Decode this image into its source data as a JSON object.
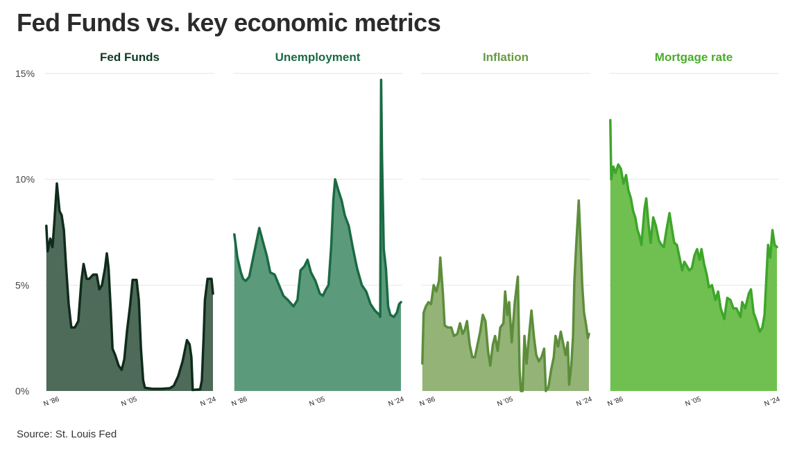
{
  "title": "Fed Funds vs. key economic metrics",
  "source": "Source: St. Louis Fed",
  "chart_data": {
    "type": "area",
    "layout": "small-multiples",
    "grid": "horizontal",
    "ylim": [
      0,
      15
    ],
    "y_ticks": [
      "0%",
      "5%",
      "10%",
      "15%"
    ],
    "y_tick_values": [
      0,
      5,
      10,
      15
    ],
    "x_ticks": [
      "N '86",
      "N '05",
      "N '24"
    ],
    "xlim": [
      1986.83,
      2024.83
    ],
    "x_tick_values": [
      1986.83,
      2005.83,
      2024.83
    ],
    "series": [
      {
        "name": "Fed Funds",
        "fill": "#4d6b58",
        "line": "#0f2b1b",
        "title_color": "#0f3b23",
        "points": [
          [
            1986.8,
            7.8
          ],
          [
            1987.1,
            6.6
          ],
          [
            1987.7,
            7.2
          ],
          [
            1988.2,
            6.8
          ],
          [
            1988.6,
            7.9
          ],
          [
            1989.2,
            9.8
          ],
          [
            1989.8,
            8.5
          ],
          [
            1990.3,
            8.3
          ],
          [
            1990.8,
            7.6
          ],
          [
            1991.3,
            5.9
          ],
          [
            1991.9,
            4.1
          ],
          [
            1992.5,
            3.0
          ],
          [
            1993.3,
            3.0
          ],
          [
            1994.1,
            3.3
          ],
          [
            1994.8,
            5.2
          ],
          [
            1995.3,
            6.0
          ],
          [
            1996.0,
            5.3
          ],
          [
            1996.6,
            5.3
          ],
          [
            1997.5,
            5.5
          ],
          [
            1998.3,
            5.5
          ],
          [
            1998.9,
            4.8
          ],
          [
            1999.5,
            5.0
          ],
          [
            2000.2,
            5.8
          ],
          [
            2000.6,
            6.5
          ],
          [
            2001.0,
            5.8
          ],
          [
            2001.5,
            3.8
          ],
          [
            2001.9,
            2.0
          ],
          [
            2002.5,
            1.7
          ],
          [
            2003.3,
            1.2
          ],
          [
            2004.0,
            1.0
          ],
          [
            2004.6,
            1.5
          ],
          [
            2005.2,
            2.8
          ],
          [
            2005.9,
            4.0
          ],
          [
            2006.5,
            5.25
          ],
          [
            2007.4,
            5.25
          ],
          [
            2007.9,
            4.3
          ],
          [
            2008.4,
            2.0
          ],
          [
            2008.9,
            0.5
          ],
          [
            2009.3,
            0.15
          ],
          [
            2011.0,
            0.1
          ],
          [
            2013.0,
            0.1
          ],
          [
            2015.0,
            0.13
          ],
          [
            2015.9,
            0.25
          ],
          [
            2016.9,
            0.7
          ],
          [
            2017.9,
            1.4
          ],
          [
            2018.9,
            2.4
          ],
          [
            2019.5,
            2.2
          ],
          [
            2019.9,
            1.6
          ],
          [
            2020.2,
            0.05
          ],
          [
            2021.9,
            0.08
          ],
          [
            2022.3,
            0.5
          ],
          [
            2022.7,
            2.5
          ],
          [
            2023.0,
            4.3
          ],
          [
            2023.6,
            5.3
          ],
          [
            2024.5,
            5.3
          ],
          [
            2024.83,
            4.6
          ]
        ]
      },
      {
        "name": "Unemployment",
        "fill": "#5b9b7c",
        "line": "#1a6a43",
        "title_color": "#1a6a43",
        "points": [
          [
            1986.8,
            7.4
          ],
          [
            1987.5,
            6.3
          ],
          [
            1988.3,
            5.6
          ],
          [
            1988.8,
            5.3
          ],
          [
            1989.4,
            5.2
          ],
          [
            1990.2,
            5.4
          ],
          [
            1990.9,
            6.1
          ],
          [
            1991.6,
            6.8
          ],
          [
            1992.5,
            7.7
          ],
          [
            1993.4,
            7.0
          ],
          [
            1994.2,
            6.4
          ],
          [
            1995.0,
            5.6
          ],
          [
            1996.0,
            5.5
          ],
          [
            1997.0,
            5.0
          ],
          [
            1998.0,
            4.5
          ],
          [
            1999.0,
            4.3
          ],
          [
            2000.3,
            4.0
          ],
          [
            2001.2,
            4.3
          ],
          [
            2001.9,
            5.7
          ],
          [
            2002.8,
            5.9
          ],
          [
            2003.5,
            6.2
          ],
          [
            2004.3,
            5.6
          ],
          [
            2005.3,
            5.2
          ],
          [
            2006.3,
            4.6
          ],
          [
            2007.0,
            4.5
          ],
          [
            2007.7,
            4.8
          ],
          [
            2008.3,
            5.0
          ],
          [
            2008.9,
            6.8
          ],
          [
            2009.4,
            9.0
          ],
          [
            2009.8,
            10.0
          ],
          [
            2010.5,
            9.5
          ],
          [
            2011.3,
            9.0
          ],
          [
            2012.0,
            8.3
          ],
          [
            2012.9,
            7.8
          ],
          [
            2013.9,
            6.7
          ],
          [
            2014.8,
            5.8
          ],
          [
            2015.9,
            5.0
          ],
          [
            2016.9,
            4.7
          ],
          [
            2017.9,
            4.1
          ],
          [
            2018.9,
            3.8
          ],
          [
            2019.9,
            3.6
          ],
          [
            2020.1,
            3.5
          ],
          [
            2020.3,
            14.7
          ],
          [
            2020.5,
            11.0
          ],
          [
            2020.9,
            6.7
          ],
          [
            2021.4,
            5.8
          ],
          [
            2021.9,
            4.0
          ],
          [
            2022.4,
            3.6
          ],
          [
            2023.2,
            3.5
          ],
          [
            2023.9,
            3.7
          ],
          [
            2024.4,
            4.1
          ],
          [
            2024.83,
            4.2
          ]
        ]
      },
      {
        "name": "Inflation",
        "fill": "#93b476",
        "line": "#5d8d3b",
        "title_color": "#6a9a42",
        "points": [
          [
            1986.8,
            1.3
          ],
          [
            1987.1,
            3.7
          ],
          [
            1987.6,
            4.0
          ],
          [
            1988.2,
            4.2
          ],
          [
            1988.8,
            4.1
          ],
          [
            1989.4,
            5.0
          ],
          [
            1990.0,
            4.7
          ],
          [
            1990.6,
            5.2
          ],
          [
            1990.9,
            6.3
          ],
          [
            1991.5,
            4.6
          ],
          [
            1991.9,
            3.1
          ],
          [
            1992.6,
            3.0
          ],
          [
            1993.4,
            3.0
          ],
          [
            1994.0,
            2.6
          ],
          [
            1994.8,
            2.7
          ],
          [
            1995.4,
            3.2
          ],
          [
            1996.0,
            2.7
          ],
          [
            1996.5,
            2.9
          ],
          [
            1997.0,
            3.3
          ],
          [
            1997.6,
            2.2
          ],
          [
            1998.2,
            1.6
          ],
          [
            1998.8,
            1.6
          ],
          [
            1999.4,
            2.2
          ],
          [
            2000.0,
            2.8
          ],
          [
            2000.6,
            3.6
          ],
          [
            2001.2,
            3.3
          ],
          [
            2001.8,
            1.9
          ],
          [
            2002.3,
            1.2
          ],
          [
            2002.9,
            2.2
          ],
          [
            2003.4,
            2.6
          ],
          [
            2004.0,
            1.9
          ],
          [
            2004.6,
            3.0
          ],
          [
            2005.3,
            3.2
          ],
          [
            2005.7,
            4.7
          ],
          [
            2006.2,
            3.6
          ],
          [
            2006.6,
            4.2
          ],
          [
            2007.2,
            2.3
          ],
          [
            2007.9,
            4.2
          ],
          [
            2008.6,
            5.4
          ],
          [
            2009.0,
            1.0
          ],
          [
            2009.3,
            -0.2
          ],
          [
            2009.7,
            -2.0
          ],
          [
            2010.1,
            2.6
          ],
          [
            2010.6,
            1.3
          ],
          [
            2011.2,
            2.7
          ],
          [
            2011.7,
            3.8
          ],
          [
            2012.3,
            2.5
          ],
          [
            2012.8,
            1.7
          ],
          [
            2013.4,
            1.4
          ],
          [
            2014.0,
            1.6
          ],
          [
            2014.6,
            2.0
          ],
          [
            2015.0,
            -0.1
          ],
          [
            2015.6,
            0.2
          ],
          [
            2016.2,
            1.0
          ],
          [
            2016.8,
            1.6
          ],
          [
            2017.2,
            2.6
          ],
          [
            2017.8,
            2.1
          ],
          [
            2018.4,
            2.8
          ],
          [
            2018.9,
            2.3
          ],
          [
            2019.5,
            1.7
          ],
          [
            2020.0,
            2.3
          ],
          [
            2020.3,
            0.3
          ],
          [
            2020.8,
            1.2
          ],
          [
            2021.2,
            2.6
          ],
          [
            2021.5,
            5.2
          ],
          [
            2021.9,
            6.8
          ],
          [
            2022.5,
            9.0
          ],
          [
            2022.9,
            7.1
          ],
          [
            2023.3,
            5.0
          ],
          [
            2023.7,
            3.7
          ],
          [
            2024.2,
            3.1
          ],
          [
            2024.6,
            2.5
          ],
          [
            2024.83,
            2.7
          ]
        ]
      },
      {
        "name": "Mortgage rate",
        "fill": "#6fc050",
        "line": "#3ea52a",
        "title_color": "#4aab2c",
        "points": [
          [
            1986.8,
            12.8
          ],
          [
            1987.0,
            10.0
          ],
          [
            1987.5,
            10.6
          ],
          [
            1988.0,
            10.3
          ],
          [
            1988.6,
            10.7
          ],
          [
            1989.2,
            10.5
          ],
          [
            1989.8,
            9.8
          ],
          [
            1990.4,
            10.2
          ],
          [
            1990.9,
            9.5
          ],
          [
            1991.5,
            9.1
          ],
          [
            1992.0,
            8.5
          ],
          [
            1992.5,
            8.2
          ],
          [
            1993.0,
            7.6
          ],
          [
            1993.5,
            7.3
          ],
          [
            1993.9,
            6.9
          ],
          [
            1994.6,
            8.6
          ],
          [
            1995.0,
            9.1
          ],
          [
            1995.5,
            7.9
          ],
          [
            1996.0,
            7.0
          ],
          [
            1996.6,
            8.2
          ],
          [
            1997.2,
            7.8
          ],
          [
            1997.9,
            7.1
          ],
          [
            1998.5,
            6.9
          ],
          [
            1999.0,
            6.8
          ],
          [
            1999.6,
            7.6
          ],
          [
            2000.3,
            8.4
          ],
          [
            2000.9,
            7.6
          ],
          [
            2001.4,
            7.0
          ],
          [
            2002.0,
            6.9
          ],
          [
            2002.6,
            6.3
          ],
          [
            2003.2,
            5.7
          ],
          [
            2003.7,
            6.1
          ],
          [
            2004.3,
            5.9
          ],
          [
            2004.8,
            5.7
          ],
          [
            2005.4,
            5.8
          ],
          [
            2006.0,
            6.4
          ],
          [
            2006.6,
            6.7
          ],
          [
            2007.2,
            6.2
          ],
          [
            2007.6,
            6.7
          ],
          [
            2008.2,
            6.0
          ],
          [
            2008.8,
            5.5
          ],
          [
            2009.3,
            4.9
          ],
          [
            2010.0,
            5.0
          ],
          [
            2010.8,
            4.3
          ],
          [
            2011.4,
            4.7
          ],
          [
            2012.0,
            3.9
          ],
          [
            2012.8,
            3.4
          ],
          [
            2013.5,
            4.4
          ],
          [
            2014.2,
            4.3
          ],
          [
            2014.9,
            3.9
          ],
          [
            2015.6,
            3.9
          ],
          [
            2016.5,
            3.5
          ],
          [
            2016.9,
            4.2
          ],
          [
            2017.6,
            3.9
          ],
          [
            2018.4,
            4.6
          ],
          [
            2018.9,
            4.8
          ],
          [
            2019.5,
            3.7
          ],
          [
            2020.2,
            3.3
          ],
          [
            2020.9,
            2.8
          ],
          [
            2021.5,
            3.0
          ],
          [
            2022.0,
            3.6
          ],
          [
            2022.4,
            5.3
          ],
          [
            2022.8,
            6.9
          ],
          [
            2023.3,
            6.3
          ],
          [
            2023.8,
            7.6
          ],
          [
            2024.3,
            6.9
          ],
          [
            2024.83,
            6.8
          ]
        ]
      }
    ]
  }
}
